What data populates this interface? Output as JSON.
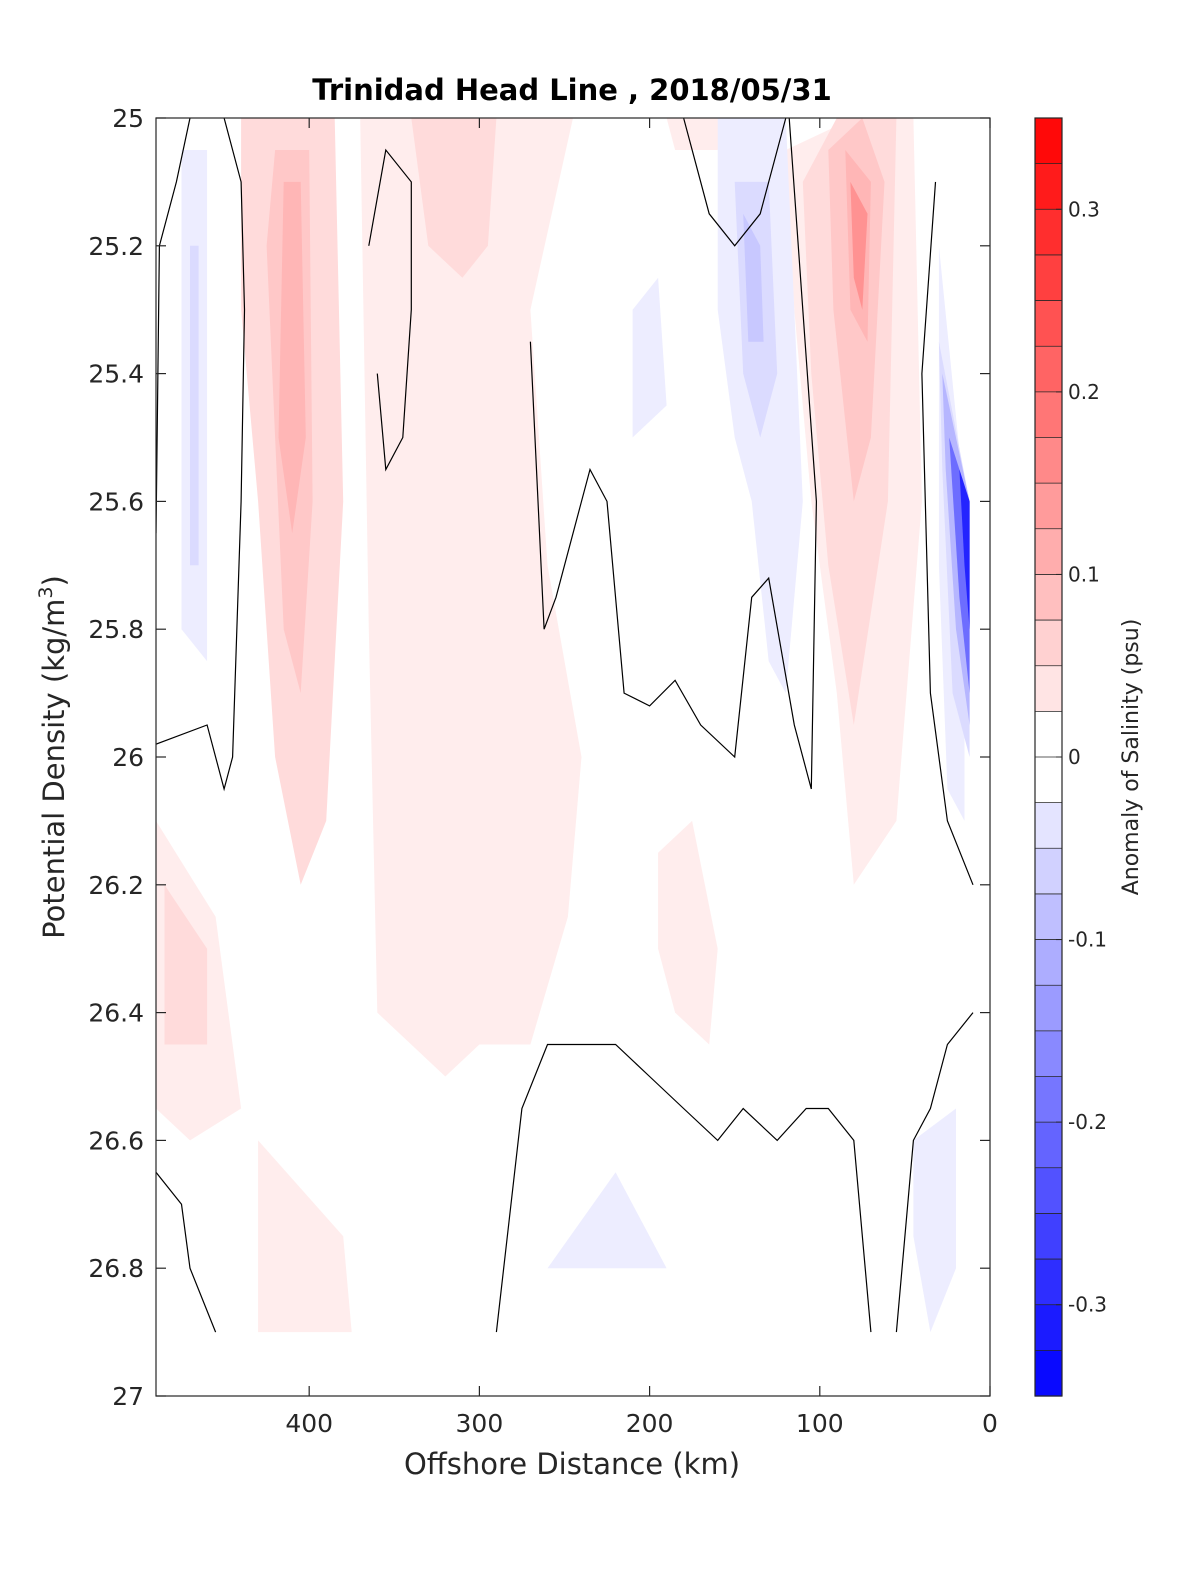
{
  "chart_data": {
    "type": "contour",
    "title": "Trinidad Head Line , 2018/05/31",
    "xlabel": "Offshore Distance (km)",
    "ylabel_main": "Potential Density (kg/m",
    "ylabel_sup": "3",
    "ylabel_close": ")",
    "xlim": [
      490,
      0
    ],
    "ylim": [
      25,
      27
    ],
    "x_reversed": true,
    "y_reversed": true,
    "xticks": [
      {
        "value": 400,
        "label": "400"
      },
      {
        "value": 300,
        "label": "300"
      },
      {
        "value": 200,
        "label": "200"
      },
      {
        "value": 100,
        "label": "100"
      },
      {
        "value": 0,
        "label": "0"
      }
    ],
    "yticks": [
      {
        "value": 25,
        "label": "25"
      },
      {
        "value": 25.2,
        "label": "25.2"
      },
      {
        "value": 25.4,
        "label": "25.4"
      },
      {
        "value": 25.6,
        "label": "25.6"
      },
      {
        "value": 25.8,
        "label": "25.8"
      },
      {
        "value": 26,
        "label": "26"
      },
      {
        "value": 26.2,
        "label": "26.2"
      },
      {
        "value": 26.4,
        "label": "26.4"
      },
      {
        "value": 26.6,
        "label": "26.6"
      },
      {
        "value": 26.8,
        "label": "26.8"
      },
      {
        "value": 27,
        "label": "27"
      }
    ],
    "colorbar": {
      "label": "Anomaly of Salinity (psu)",
      "range": [
        -0.35,
        0.35
      ],
      "step": 0.025,
      "ticks": [
        {
          "value": 0.3,
          "label": "0.3"
        },
        {
          "value": 0.2,
          "label": "0.2"
        },
        {
          "value": 0.1,
          "label": "0.1"
        },
        {
          "value": 0,
          "label": "0"
        },
        {
          "value": -0.1,
          "label": "-0.1"
        },
        {
          "value": -0.2,
          "label": "-0.2"
        },
        {
          "value": -0.3,
          "label": "-0.3"
        }
      ],
      "colormap": "blue-white-red",
      "positive_color": "#ff0000",
      "negative_color": "#0000ff"
    },
    "anomaly_regions": [
      {
        "level": 0.025,
        "points": [
          [
            490,
            25
          ],
          [
            370,
            25
          ],
          [
            365,
            25.8
          ],
          [
            360,
            26.4
          ],
          [
            320,
            26.5
          ],
          [
            300,
            26.45
          ],
          [
            270,
            26.45
          ],
          [
            248,
            26.25
          ],
          [
            240,
            26.0
          ],
          [
            260,
            25.7
          ],
          [
            270,
            25.3
          ],
          [
            245,
            25
          ],
          [
            490,
            25
          ]
        ]
      },
      {
        "level": 0.025,
        "points": [
          [
            490,
            26.1
          ],
          [
            455,
            26.25
          ],
          [
            440,
            26.55
          ],
          [
            470,
            26.6
          ],
          [
            490,
            26.55
          ]
        ]
      },
      {
        "level": 0.025,
        "points": [
          [
            300,
            25
          ],
          [
            250,
            25
          ],
          [
            270,
            25.3
          ],
          [
            290,
            25.25
          ],
          [
            305,
            25.1
          ]
        ]
      },
      {
        "level": 0.025,
        "points": [
          [
            190,
            25
          ],
          [
            150,
            25
          ],
          [
            160,
            25.05
          ],
          [
            185,
            25.05
          ]
        ]
      },
      {
        "level": 0.025,
        "points": [
          [
            195,
            26.15
          ],
          [
            175,
            26.1
          ],
          [
            160,
            26.3
          ],
          [
            165,
            26.45
          ],
          [
            185,
            26.4
          ],
          [
            195,
            26.3
          ]
        ]
      },
      {
        "level": 0.025,
        "points": [
          [
            430,
            26.6
          ],
          [
            380,
            26.75
          ],
          [
            375,
            26.9
          ],
          [
            430,
            26.9
          ]
        ]
      },
      {
        "level": 0.025,
        "points": [
          [
            120,
            25.05
          ],
          [
            80,
            25.0
          ],
          [
            45,
            25.0
          ],
          [
            40,
            25.6
          ],
          [
            55,
            26.1
          ],
          [
            80,
            26.2
          ],
          [
            90,
            25.9
          ],
          [
            105,
            25.6
          ],
          [
            115,
            25.3
          ]
        ]
      },
      {
        "level": 0.05,
        "points": [
          [
            440,
            25
          ],
          [
            385,
            25
          ],
          [
            380,
            25.6
          ],
          [
            390,
            26.1
          ],
          [
            405,
            26.2
          ],
          [
            420,
            26.0
          ],
          [
            430,
            25.6
          ],
          [
            440,
            25.3
          ]
        ]
      },
      {
        "level": 0.05,
        "points": [
          [
            340,
            25
          ],
          [
            290,
            25
          ],
          [
            295,
            25.2
          ],
          [
            310,
            25.25
          ],
          [
            330,
            25.2
          ]
        ]
      },
      {
        "level": 0.05,
        "points": [
          [
            485,
            26.2
          ],
          [
            460,
            26.3
          ],
          [
            460,
            26.45
          ],
          [
            485,
            26.45
          ]
        ]
      },
      {
        "level": 0.05,
        "points": [
          [
            110,
            25.1
          ],
          [
            90,
            25.0
          ],
          [
            55,
            25.0
          ],
          [
            60,
            25.6
          ],
          [
            80,
            25.95
          ],
          [
            95,
            25.7
          ],
          [
            105,
            25.4
          ]
        ]
      },
      {
        "level": 0.075,
        "points": [
          [
            420,
            25.05
          ],
          [
            400,
            25.05
          ],
          [
            398,
            25.6
          ],
          [
            405,
            25.9
          ],
          [
            415,
            25.8
          ],
          [
            420,
            25.5
          ],
          [
            425,
            25.2
          ]
        ]
      },
      {
        "level": 0.075,
        "points": [
          [
            95,
            25.05
          ],
          [
            75,
            25.0
          ],
          [
            62,
            25.1
          ],
          [
            70,
            25.5
          ],
          [
            80,
            25.6
          ],
          [
            92,
            25.3
          ]
        ]
      },
      {
        "level": 0.1,
        "points": [
          [
            415,
            25.1
          ],
          [
            405,
            25.1
          ],
          [
            402,
            25.5
          ],
          [
            410,
            25.65
          ],
          [
            418,
            25.5
          ]
        ]
      },
      {
        "level": 0.1,
        "points": [
          [
            85,
            25.05
          ],
          [
            70,
            25.1
          ],
          [
            72,
            25.35
          ],
          [
            82,
            25.3
          ]
        ]
      },
      {
        "level": 0.15,
        "points": [
          [
            82,
            25.1
          ],
          [
            72,
            25.15
          ],
          [
            75,
            25.3
          ],
          [
            80,
            25.25
          ]
        ]
      },
      {
        "level": -0.025,
        "points": [
          [
            475,
            25.05
          ],
          [
            460,
            25.05
          ],
          [
            460,
            25.85
          ],
          [
            475,
            25.8
          ]
        ]
      },
      {
        "level": -0.025,
        "points": [
          [
            160,
            25
          ],
          [
            120,
            25.0
          ],
          [
            110,
            25.6
          ],
          [
            120,
            25.9
          ],
          [
            130,
            25.85
          ],
          [
            140,
            25.6
          ],
          [
            150,
            25.5
          ],
          [
            160,
            25.3
          ]
        ]
      },
      {
        "level": -0.025,
        "points": [
          [
            210,
            25.3
          ],
          [
            195,
            25.25
          ],
          [
            190,
            25.45
          ],
          [
            210,
            25.5
          ]
        ]
      },
      {
        "level": -0.025,
        "points": [
          [
            30,
            25.2
          ],
          [
            15,
            25.6
          ],
          [
            15,
            26.1
          ],
          [
            25,
            26.05
          ],
          [
            30,
            25.7
          ]
        ]
      },
      {
        "level": -0.025,
        "points": [
          [
            45,
            26.6
          ],
          [
            20,
            26.55
          ],
          [
            20,
            26.8
          ],
          [
            35,
            26.9
          ],
          [
            45,
            26.75
          ]
        ]
      },
      {
        "level": -0.025,
        "points": [
          [
            220,
            26.65
          ],
          [
            200,
            26.75
          ],
          [
            190,
            26.8
          ],
          [
            230,
            26.8
          ],
          [
            260,
            26.8
          ]
        ]
      },
      {
        "level": -0.05,
        "points": [
          [
            470,
            25.2
          ],
          [
            465,
            25.2
          ],
          [
            465,
            25.7
          ],
          [
            470,
            25.7
          ]
        ]
      },
      {
        "level": -0.05,
        "points": [
          [
            150,
            25.1
          ],
          [
            130,
            25.1
          ],
          [
            125,
            25.4
          ],
          [
            135,
            25.5
          ],
          [
            145,
            25.4
          ]
        ]
      },
      {
        "level": -0.075,
        "points": [
          [
            145,
            25.15
          ],
          [
            135,
            25.2
          ],
          [
            133,
            25.35
          ],
          [
            142,
            25.35
          ]
        ]
      },
      {
        "level": -0.05,
        "points": [
          [
            30,
            25.35
          ],
          [
            12,
            25.6
          ],
          [
            12,
            26.0
          ],
          [
            22,
            25.9
          ],
          [
            28,
            25.55
          ]
        ]
      },
      {
        "level": -0.1,
        "points": [
          [
            28,
            25.4
          ],
          [
            12,
            25.6
          ],
          [
            12,
            25.95
          ],
          [
            20,
            25.8
          ],
          [
            26,
            25.55
          ]
        ]
      },
      {
        "level": -0.2,
        "points": [
          [
            24,
            25.5
          ],
          [
            12,
            25.6
          ],
          [
            12,
            25.9
          ],
          [
            18,
            25.75
          ]
        ]
      },
      {
        "level": -0.3,
        "points": [
          [
            18,
            25.55
          ],
          [
            12,
            25.6
          ],
          [
            12,
            25.8
          ],
          [
            15,
            25.7
          ]
        ]
      }
    ],
    "zero_contours": [
      {
        "points": [
          [
            490,
            25.65
          ],
          [
            488,
            25.2
          ],
          [
            478,
            25.1
          ],
          [
            470,
            25.0
          ]
        ]
      },
      {
        "points": [
          [
            450,
            25.0
          ],
          [
            440,
            25.1
          ],
          [
            438,
            25.3
          ],
          [
            440,
            25.6
          ],
          [
            445,
            26.0
          ],
          [
            450,
            26.05
          ],
          [
            460,
            25.95
          ],
          [
            490,
            25.98
          ]
        ]
      },
      {
        "points": [
          [
            365,
            25.2
          ],
          [
            355,
            25.05
          ],
          [
            340,
            25.1
          ],
          [
            340,
            25.3
          ],
          [
            345,
            25.5
          ],
          [
            355,
            25.55
          ],
          [
            360,
            25.4
          ]
        ]
      },
      {
        "points": [
          [
            270,
            25.35
          ],
          [
            262,
            25.8
          ],
          [
            255,
            25.75
          ],
          [
            240,
            25.6
          ],
          [
            235,
            25.55
          ],
          [
            225,
            25.6
          ],
          [
            215,
            25.9
          ],
          [
            200,
            25.92
          ],
          [
            185,
            25.88
          ],
          [
            170,
            25.95
          ],
          [
            150,
            26.0
          ],
          [
            140,
            25.75
          ],
          [
            130,
            25.72
          ],
          [
            115,
            25.95
          ],
          [
            105,
            26.05
          ],
          [
            102,
            25.6
          ],
          [
            118,
            25.0
          ]
        ]
      },
      {
        "points": [
          [
            180,
            25.0
          ],
          [
            165,
            25.15
          ],
          [
            150,
            25.2
          ],
          [
            135,
            25.15
          ],
          [
            120,
            25.0
          ]
        ]
      },
      {
        "points": [
          [
            32,
            25.1
          ],
          [
            40,
            25.4
          ],
          [
            35,
            25.9
          ],
          [
            25,
            26.1
          ],
          [
            10,
            26.2
          ]
        ]
      },
      {
        "points": [
          [
            290,
            26.9
          ],
          [
            275,
            26.55
          ],
          [
            260,
            26.45
          ],
          [
            240,
            26.45
          ],
          [
            220,
            26.45
          ],
          [
            200,
            26.5
          ],
          [
            180,
            26.55
          ],
          [
            160,
            26.6
          ],
          [
            145,
            26.55
          ],
          [
            125,
            26.6
          ],
          [
            108,
            26.55
          ],
          [
            95,
            26.55
          ],
          [
            80,
            26.6
          ],
          [
            70,
            26.9
          ]
        ]
      },
      {
        "points": [
          [
            490,
            26.65
          ],
          [
            475,
            26.7
          ],
          [
            470,
            26.8
          ],
          [
            455,
            26.9
          ]
        ]
      },
      {
        "points": [
          [
            10,
            26.4
          ],
          [
            25,
            26.45
          ],
          [
            35,
            26.55
          ],
          [
            45,
            26.6
          ],
          [
            55,
            26.9
          ]
        ]
      }
    ]
  }
}
